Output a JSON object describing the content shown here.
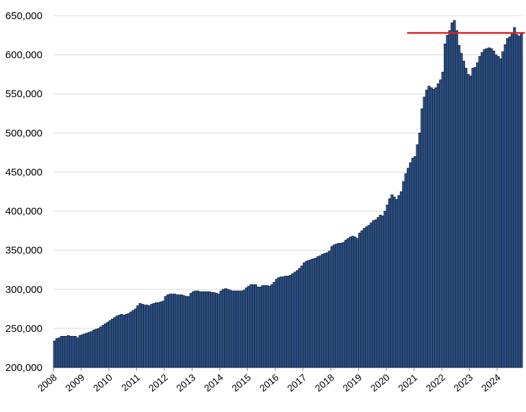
{
  "chart_data": {
    "type": "bar",
    "title": "",
    "xlabel": "",
    "ylabel": "",
    "ylim": [
      200000,
      650000
    ],
    "yticks": [
      "200,000",
      "250,000",
      "300,000",
      "350,000",
      "400,000",
      "450,000",
      "500,000",
      "550,000",
      "600,000",
      "650,000"
    ],
    "ytick_values": [
      200000,
      250000,
      300000,
      350000,
      400000,
      450000,
      500000,
      550000,
      600000,
      650000
    ],
    "xtick_labels": [
      "2008",
      "2009",
      "2010",
      "2011",
      "2012",
      "2013",
      "2014",
      "2015",
      "2016",
      "2017",
      "2018",
      "2019",
      "2020",
      "2021",
      "2022",
      "2023",
      "2024"
    ],
    "grid": "horizontal",
    "bar_color": "#2e5185",
    "bar_edge_color": "#0d1b30",
    "reference_line": {
      "value": 628000,
      "color": "#e02020",
      "start_year": 2020.75,
      "end_year": 2025.0
    },
    "series": [
      {
        "start": "2008-01",
        "values": [
          234000,
          237000,
          238000,
          240000,
          240000,
          240000,
          241000,
          240000,
          240000,
          240000,
          238000,
          241000,
          242000,
          243000,
          244000,
          245000,
          246000,
          248000,
          249000,
          250000,
          252000,
          254000,
          256000,
          258000,
          260000,
          262000,
          264000,
          266000,
          267000,
          268000,
          267000,
          268000,
          269000,
          271000,
          273000,
          275000,
          279000,
          282000,
          281000,
          280000,
          280000,
          279000,
          281000,
          282000,
          283000,
          283000,
          284000,
          285000,
          291000,
          293000,
          294000,
          294000,
          294000,
          293000,
          293000,
          293000,
          292000,
          291000,
          291000,
          295000,
          297000,
          298000,
          298000,
          297000,
          297000,
          297000,
          297000,
          297000,
          296000,
          296000,
          295000,
          294000,
          298000,
          300000,
          301000,
          300000,
          299000,
          298000,
          298000,
          298000,
          298000,
          298000,
          299000,
          302000,
          304000,
          306000,
          306000,
          306000,
          303000,
          303000,
          305000,
          305000,
          305000,
          304000,
          306000,
          309000,
          313000,
          315000,
          316000,
          316000,
          317000,
          317000,
          318000,
          320000,
          322000,
          324000,
          327000,
          330000,
          334000,
          336000,
          337000,
          338000,
          339000,
          340000,
          342000,
          343000,
          345000,
          346000,
          347000,
          349000,
          355000,
          357000,
          358000,
          359000,
          359000,
          360000,
          363000,
          365000,
          367000,
          368000,
          367000,
          365000,
          372000,
          375000,
          378000,
          380000,
          382000,
          385000,
          388000,
          389000,
          392000,
          395000,
          394000,
          400000,
          408000,
          416000,
          421000,
          418000,
          415000,
          420000,
          425000,
          438000,
          448000,
          455000,
          462000,
          468000,
          470000,
          485000,
          500000,
          531000,
          546000,
          555000,
          560000,
          558000,
          556000,
          558000,
          563000,
          568000,
          578000,
          614000,
          625000,
          631000,
          641000,
          644000,
          631000,
          612000,
          602000,
          592000,
          583000,
          575000,
          573000,
          583000,
          584000,
          590000,
          598000,
          603000,
          607000,
          608000,
          609000,
          608000,
          605000,
          600000,
          598000,
          595000,
          604000,
          613000,
          621000,
          623000,
          628000,
          635000,
          626000,
          624000,
          628000
        ]
      }
    ]
  }
}
